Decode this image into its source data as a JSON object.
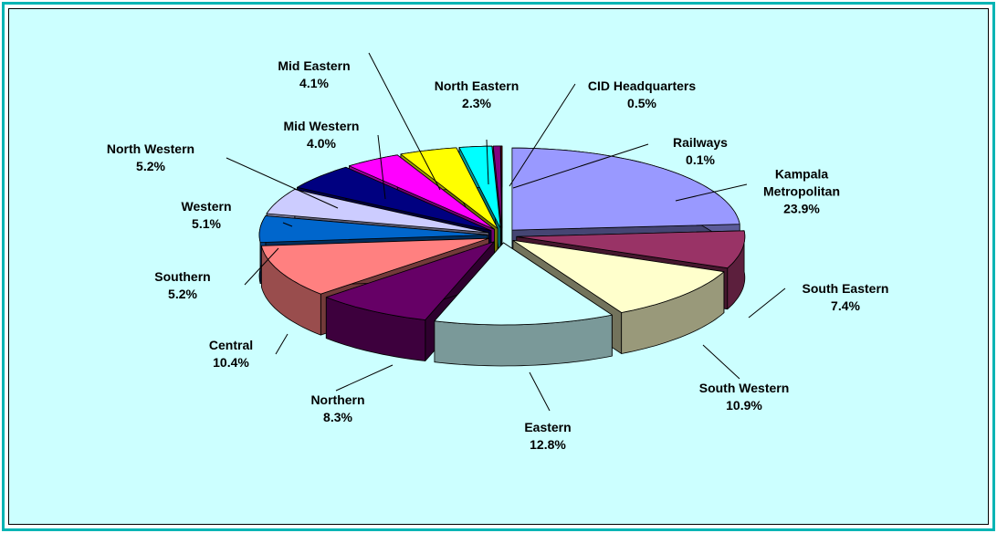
{
  "chart_data": {
    "type": "pie3d",
    "categories": [
      "Kampala Metropolitan",
      "South Eastern",
      "South Western",
      "Eastern",
      "Northern",
      "Central",
      "Southern",
      "Western",
      "North Western",
      "Mid Western",
      "Mid Eastern",
      "North Eastern",
      "CID Headquarters",
      "Railways"
    ],
    "values": [
      23.9,
      7.4,
      10.9,
      12.8,
      8.3,
      10.4,
      5.2,
      5.1,
      5.2,
      4.0,
      4.1,
      2.3,
      0.5,
      0.1
    ],
    "value_labels": [
      "23.9%",
      "7.4%",
      "10.9%",
      "12.8%",
      "8.3%",
      "10.4%",
      "5.2%",
      "5.1%",
      "5.2%",
      "4.0%",
      "4.1%",
      "2.3%",
      "0.5%",
      "0.1%"
    ],
    "colors": [
      "#9999ff",
      "#993366",
      "#ffffcc",
      "#ccffff",
      "#660066",
      "#ff8080",
      "#0066cc",
      "#ccccff",
      "#000080",
      "#ff00ff",
      "#ffff00",
      "#00ffff",
      "#800080",
      "#800000"
    ]
  }
}
